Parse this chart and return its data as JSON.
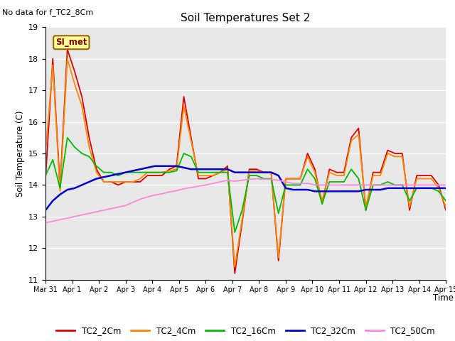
{
  "title": "Soil Temperatures Set 2",
  "subtitle": "No data for f_TC2_8Cm",
  "xlabel": "Time",
  "ylabel": "Soil Temperature (C)",
  "ylim": [
    11.0,
    19.0
  ],
  "yticks": [
    11.0,
    12.0,
    13.0,
    14.0,
    15.0,
    16.0,
    17.0,
    18.0,
    19.0
  ],
  "bg_color": "#e8e8e8",
  "legend_label": "SI_met",
  "legend_box_facecolor": "#ffff99",
  "legend_box_edgecolor": "#996600",
  "series_colors": {
    "TC2_2Cm": "#dd0000",
    "TC2_4Cm": "#ff8800",
    "TC2_16Cm": "#00bb00",
    "TC2_32Cm": "#0000cc",
    "TC2_50Cm": "#ff88dd"
  },
  "x_tick_labels": [
    "Mar 31",
    "Apr 1",
    "Apr 2",
    "Apr 3",
    "Apr 4",
    "Apr 5",
    "Apr 6",
    "Apr 7",
    "Apr 8",
    "Apr 9",
    "Apr 10",
    "Apr 11",
    "Apr 12",
    "Apr 13",
    "Apr 14",
    "Apr 15"
  ],
  "TC2_2Cm": [
    14.2,
    18.0,
    13.9,
    18.3,
    17.6,
    16.8,
    15.5,
    14.5,
    14.1,
    14.1,
    14.0,
    14.1,
    14.1,
    14.1,
    14.3,
    14.3,
    14.3,
    14.5,
    14.6,
    16.8,
    15.5,
    14.2,
    14.2,
    14.3,
    14.4,
    14.6,
    11.2,
    12.8,
    14.5,
    14.5,
    14.4,
    14.4,
    11.6,
    14.2,
    14.2,
    14.2,
    15.0,
    14.5,
    13.4,
    14.5,
    14.4,
    14.4,
    15.5,
    15.8,
    13.2,
    14.4,
    14.4,
    15.1,
    15.0,
    15.0,
    13.2,
    14.3,
    14.3,
    14.3,
    14.0,
    13.2
  ],
  "TC2_4Cm": [
    15.0,
    17.8,
    13.8,
    18.0,
    17.2,
    16.5,
    15.2,
    14.4,
    14.1,
    14.1,
    14.1,
    14.1,
    14.1,
    14.2,
    14.4,
    14.4,
    14.4,
    14.45,
    14.5,
    16.5,
    15.4,
    14.3,
    14.3,
    14.3,
    14.4,
    14.5,
    11.4,
    12.9,
    14.45,
    14.45,
    14.4,
    14.4,
    11.7,
    14.2,
    14.2,
    14.2,
    14.9,
    14.4,
    13.5,
    14.4,
    14.3,
    14.3,
    15.4,
    15.6,
    13.3,
    14.3,
    14.3,
    15.0,
    14.9,
    14.9,
    13.3,
    14.2,
    14.2,
    14.2,
    13.9,
    13.3
  ],
  "TC2_16Cm": [
    14.3,
    14.8,
    13.9,
    15.5,
    15.2,
    15.0,
    14.9,
    14.6,
    14.4,
    14.4,
    14.3,
    14.4,
    14.4,
    14.4,
    14.4,
    14.4,
    14.4,
    14.4,
    14.45,
    15.0,
    14.9,
    14.4,
    14.4,
    14.4,
    14.4,
    14.4,
    12.5,
    13.2,
    14.3,
    14.3,
    14.2,
    14.2,
    13.1,
    14.0,
    14.0,
    14.0,
    14.5,
    14.2,
    13.4,
    14.1,
    14.1,
    14.1,
    14.5,
    14.2,
    13.2,
    14.0,
    14.0,
    14.1,
    14.0,
    14.0,
    13.5,
    13.9,
    13.9,
    13.9,
    13.8,
    13.5
  ],
  "TC2_32Cm": [
    13.2,
    13.5,
    13.7,
    13.85,
    13.9,
    14.0,
    14.1,
    14.2,
    14.25,
    14.3,
    14.35,
    14.4,
    14.45,
    14.5,
    14.55,
    14.6,
    14.6,
    14.6,
    14.6,
    14.55,
    14.5,
    14.5,
    14.5,
    14.5,
    14.5,
    14.5,
    14.4,
    14.4,
    14.4,
    14.4,
    14.4,
    14.4,
    14.3,
    13.9,
    13.85,
    13.85,
    13.85,
    13.8,
    13.8,
    13.8,
    13.8,
    13.8,
    13.8,
    13.8,
    13.85,
    13.85,
    13.85,
    13.9,
    13.9,
    13.9,
    13.9,
    13.9,
    13.9,
    13.9,
    13.9,
    13.9
  ],
  "TC2_50Cm": [
    12.8,
    12.85,
    12.9,
    12.95,
    13.0,
    13.05,
    13.1,
    13.15,
    13.2,
    13.25,
    13.3,
    13.35,
    13.45,
    13.55,
    13.62,
    13.68,
    13.72,
    13.78,
    13.82,
    13.88,
    13.92,
    13.96,
    14.0,
    14.05,
    14.1,
    14.15,
    14.12,
    14.15,
    14.18,
    14.2,
    14.18,
    14.18,
    14.15,
    14.1,
    14.05,
    14.05,
    14.05,
    14.0,
    14.0,
    14.0,
    14.0,
    14.0,
    14.0,
    14.0,
    14.0,
    14.0,
    14.0,
    14.0,
    14.0,
    14.0,
    14.0,
    14.0,
    14.0,
    14.0,
    14.0,
    14.0
  ]
}
